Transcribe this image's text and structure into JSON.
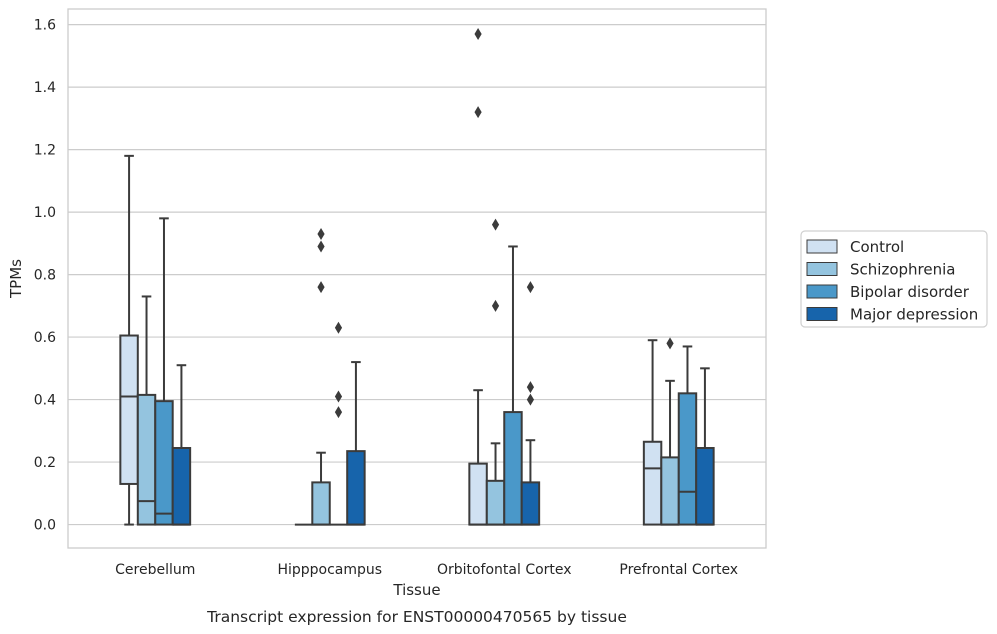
{
  "caption": "Transcript expression for ENST00000470565 by tissue",
  "chart_data": {
    "type": "box",
    "xlabel": "Tissue",
    "ylabel": "TPMs",
    "ylim": [
      -0.075,
      1.65
    ],
    "yticks": [
      0.0,
      0.2,
      0.4,
      0.6,
      0.8,
      1.0,
      1.2,
      1.4,
      1.6
    ],
    "ytick_labels": [
      "0.0",
      "0.2",
      "0.4",
      "0.6",
      "0.8",
      "1.0",
      "1.2",
      "1.4",
      "1.6"
    ],
    "grid": true,
    "legend_position": "right",
    "categories": [
      "Cerebellum",
      "Hipppocampus",
      "Orbitofontal Cortex",
      "Prefrontal Cortex"
    ],
    "series": [
      {
        "name": "Control",
        "color": "#d0e1f2",
        "boxes": [
          {
            "q1": 0.13,
            "median": 0.41,
            "q3": 0.605,
            "whisker_low": 0.0,
            "whisker_high": 1.18,
            "outliers": []
          },
          {
            "q1": 0.0,
            "median": 0.0,
            "q3": 0.0,
            "whisker_low": 0.0,
            "whisker_high": 0.0,
            "outliers": []
          },
          {
            "q1": 0.0,
            "median": 0.0,
            "q3": 0.195,
            "whisker_low": 0.0,
            "whisker_high": 0.43,
            "outliers": [
              1.32,
              1.57
            ]
          },
          {
            "q1": 0.0,
            "median": 0.18,
            "q3": 0.265,
            "whisker_low": 0.0,
            "whisker_high": 0.59,
            "outliers": []
          }
        ]
      },
      {
        "name": "Schizophrenia",
        "color": "#94c4df",
        "boxes": [
          {
            "q1": 0.0,
            "median": 0.075,
            "q3": 0.415,
            "whisker_low": 0.0,
            "whisker_high": 0.73,
            "outliers": []
          },
          {
            "q1": 0.0,
            "median": 0.0,
            "q3": 0.135,
            "whisker_low": 0.0,
            "whisker_high": 0.23,
            "outliers": [
              0.76,
              0.89,
              0.93
            ]
          },
          {
            "q1": 0.0,
            "median": 0.0,
            "q3": 0.14,
            "whisker_low": 0.0,
            "whisker_high": 0.26,
            "outliers": [
              0.7,
              0.96
            ]
          },
          {
            "q1": 0.0,
            "median": 0.0,
            "q3": 0.215,
            "whisker_low": 0.0,
            "whisker_high": 0.46,
            "outliers": [
              0.58
            ]
          }
        ]
      },
      {
        "name": "Bipolar disorder",
        "color": "#4a98c9",
        "boxes": [
          {
            "q1": 0.0,
            "median": 0.035,
            "q3": 0.395,
            "whisker_low": 0.0,
            "whisker_high": 0.98,
            "outliers": []
          },
          {
            "q1": 0.0,
            "median": 0.0,
            "q3": 0.0,
            "whisker_low": 0.0,
            "whisker_high": 0.0,
            "outliers": [
              0.36,
              0.41,
              0.63
            ]
          },
          {
            "q1": 0.0,
            "median": 0.0,
            "q3": 0.36,
            "whisker_low": 0.0,
            "whisker_high": 0.89,
            "outliers": []
          },
          {
            "q1": 0.0,
            "median": 0.105,
            "q3": 0.42,
            "whisker_low": 0.0,
            "whisker_high": 0.57,
            "outliers": []
          }
        ]
      },
      {
        "name": "Major depression",
        "color": "#1764ab",
        "boxes": [
          {
            "q1": 0.0,
            "median": 0.0,
            "q3": 0.245,
            "whisker_low": 0.0,
            "whisker_high": 0.51,
            "outliers": []
          },
          {
            "q1": 0.0,
            "median": 0.0,
            "q3": 0.235,
            "whisker_low": 0.0,
            "whisker_high": 0.52,
            "outliers": []
          },
          {
            "q1": 0.0,
            "median": 0.0,
            "q3": 0.135,
            "whisker_low": 0.0,
            "whisker_high": 0.27,
            "outliers": [
              0.4,
              0.44,
              0.76
            ]
          },
          {
            "q1": 0.0,
            "median": 0.0,
            "q3": 0.245,
            "whisker_low": 0.0,
            "whisker_high": 0.5,
            "outliers": []
          }
        ]
      }
    ]
  }
}
